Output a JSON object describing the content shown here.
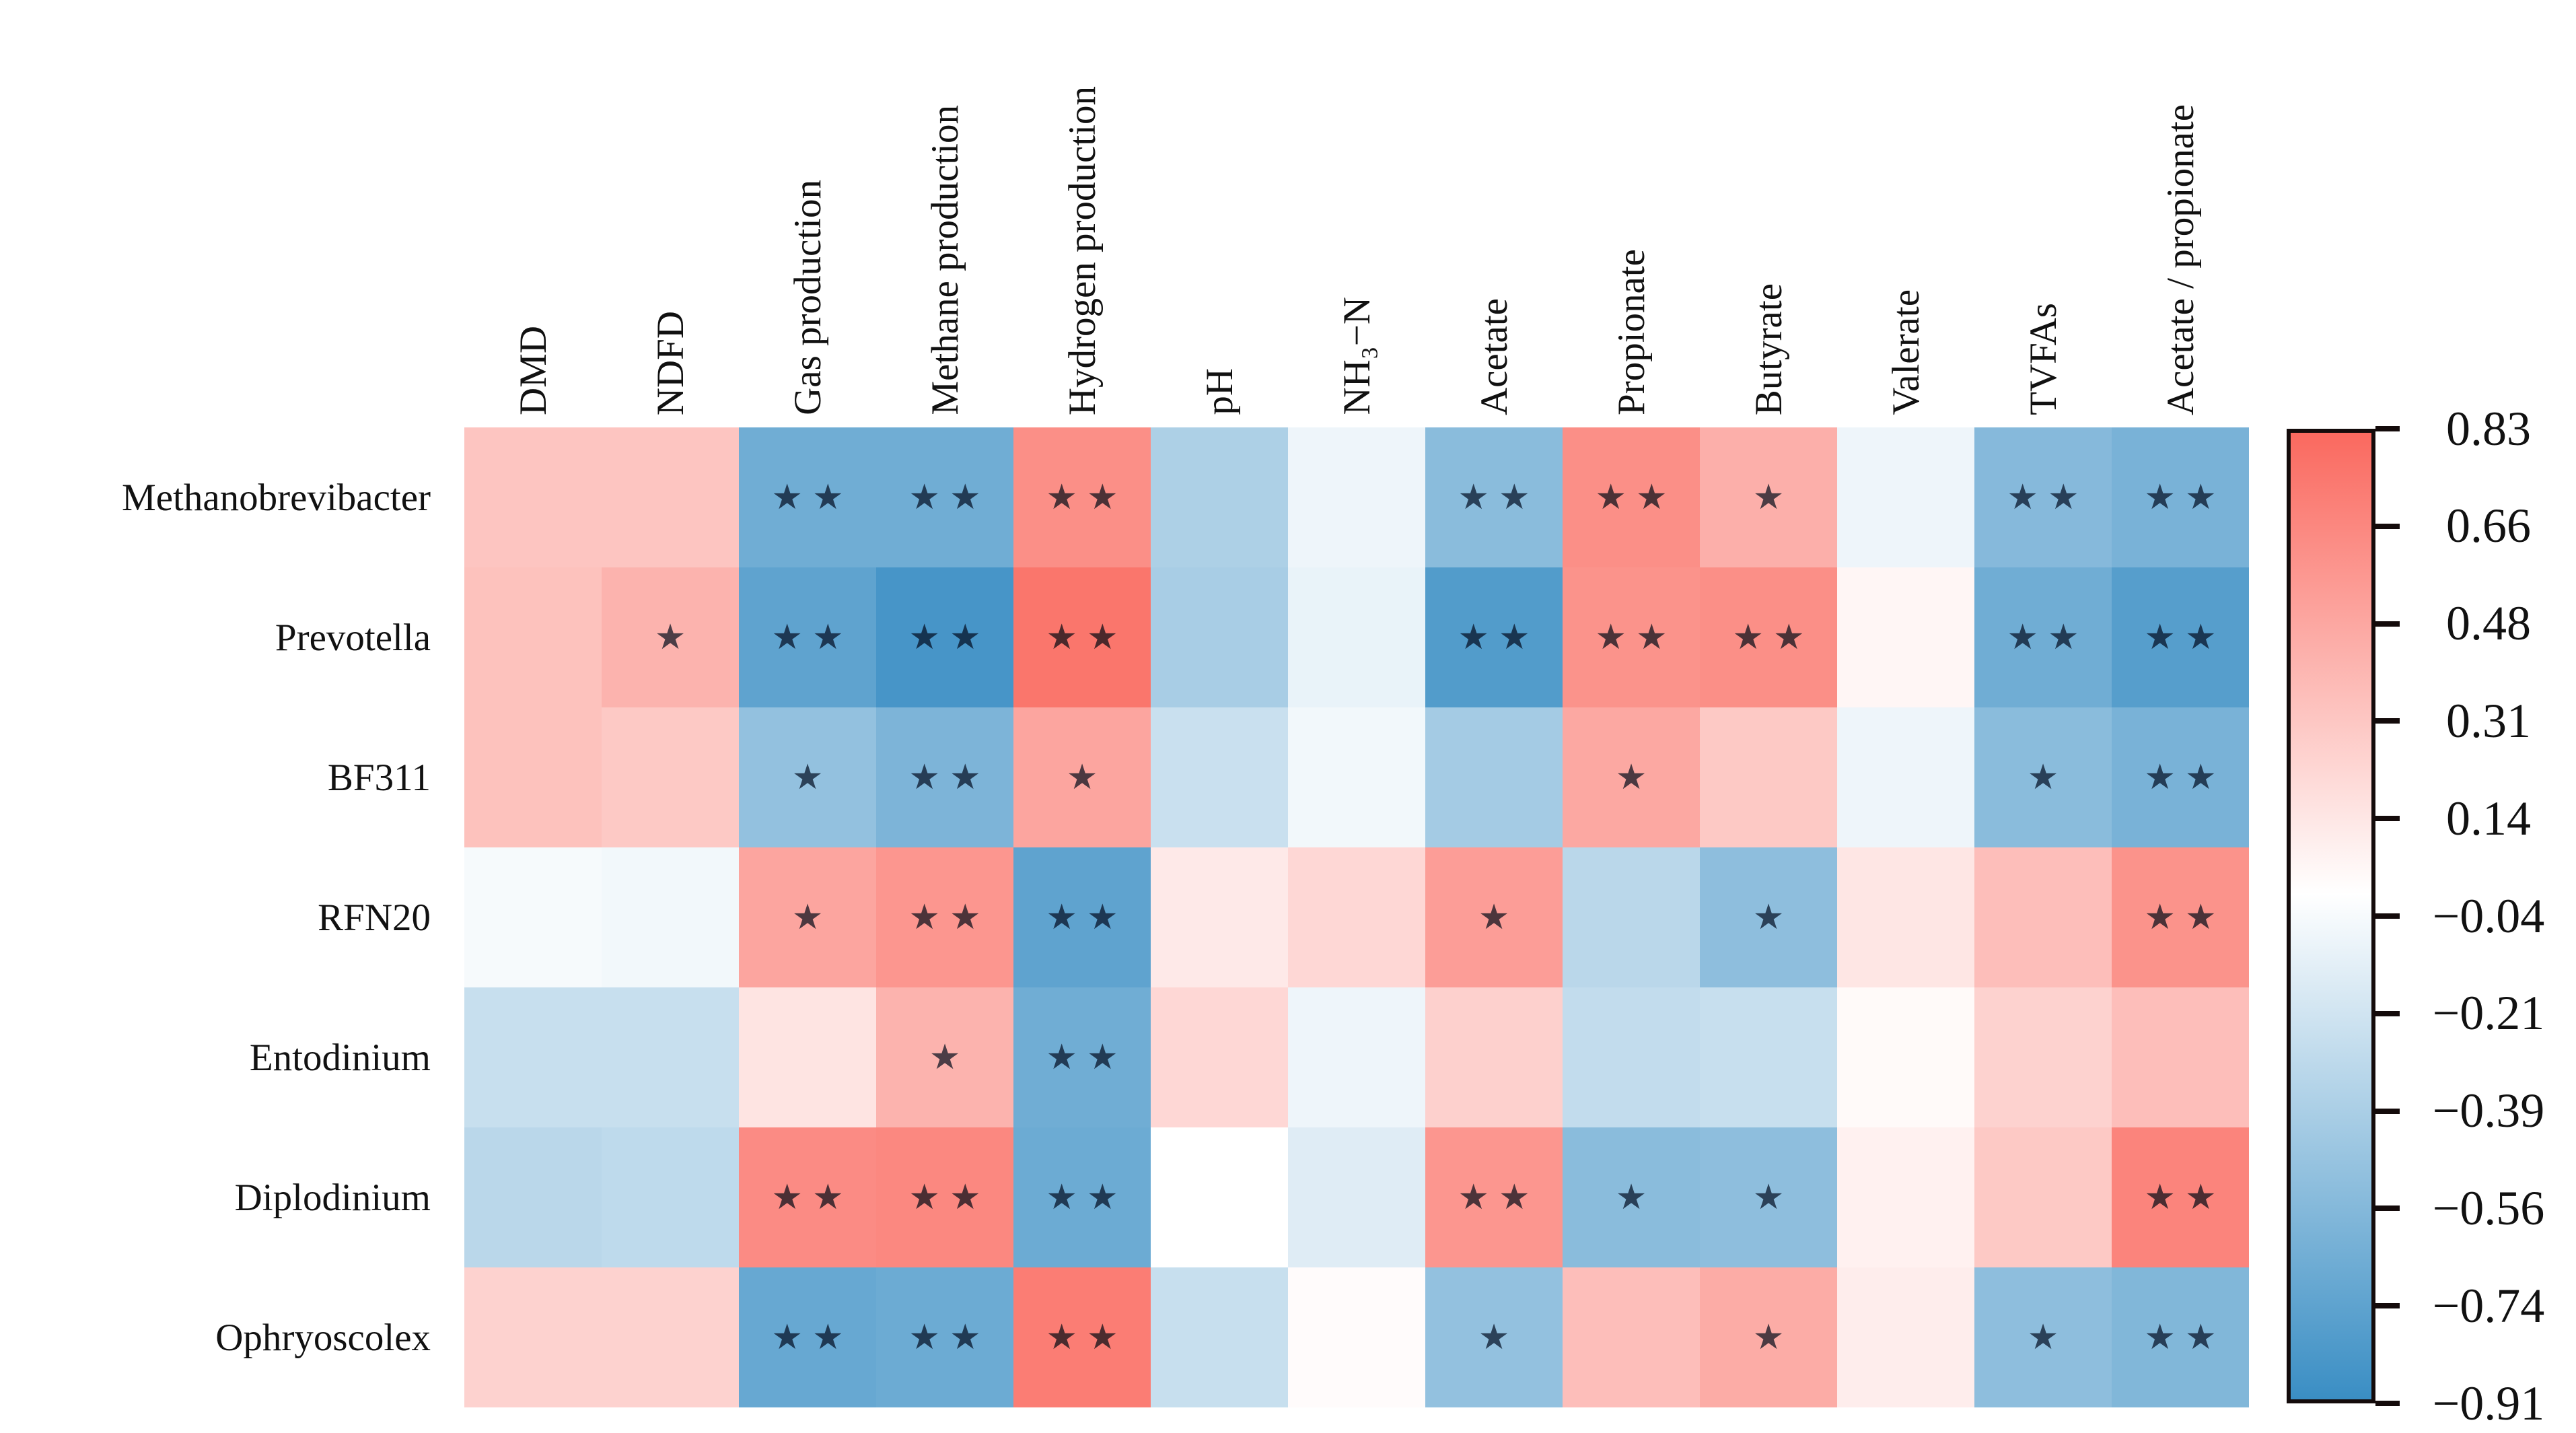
{
  "figure": {
    "kind": "correlation-heatmap-figure",
    "background": "#ffffff",
    "text_color": "#111111"
  },
  "chart_data": {
    "type": "heatmap",
    "title": "",
    "rows": [
      "Methanobrevibacter",
      "Prevotella",
      "BF311",
      "RFN20",
      "Entodinium",
      "Diplodinium",
      "Ophryoscolex"
    ],
    "columns": [
      "DMD",
      "NDFD",
      "Gas production",
      "Methane production",
      "Hydrogen production",
      "pH",
      "NH₃−N",
      "Acetate",
      "Propionate",
      "Butyrate",
      "Valerate",
      "TVFAs",
      "Acetate / propionate"
    ],
    "values": [
      [
        0.32,
        0.32,
        -0.66,
        -0.66,
        0.62,
        -0.38,
        -0.08,
        -0.54,
        0.62,
        0.44,
        -0.08,
        -0.56,
        -0.62
      ],
      [
        0.34,
        0.42,
        -0.74,
        -0.85,
        0.76,
        -0.4,
        -0.1,
        -0.8,
        0.6,
        0.62,
        0.05,
        -0.66,
        -0.78
      ],
      [
        0.34,
        0.3,
        -0.5,
        -0.6,
        0.5,
        -0.25,
        -0.06,
        -0.42,
        0.48,
        0.3,
        -0.08,
        -0.54,
        -0.62
      ],
      [
        -0.04,
        -0.06,
        0.5,
        0.58,
        -0.74,
        0.12,
        0.22,
        0.54,
        -0.32,
        -0.52,
        0.14,
        0.36,
        0.6
      ],
      [
        -0.26,
        -0.26,
        0.15,
        0.42,
        -0.66,
        0.22,
        -0.08,
        0.26,
        -0.28,
        -0.26,
        0.03,
        0.25,
        0.36
      ],
      [
        -0.32,
        -0.3,
        0.64,
        0.66,
        -0.68,
        0.0,
        -0.15,
        0.58,
        -0.54,
        -0.52,
        0.08,
        0.3,
        0.68
      ],
      [
        0.25,
        0.25,
        -0.7,
        -0.68,
        0.72,
        -0.26,
        0.02,
        -0.5,
        0.36,
        0.46,
        0.1,
        -0.52,
        -0.58
      ]
    ],
    "significance": [
      [
        "",
        "",
        "**",
        "**",
        "**",
        "",
        "",
        "**",
        "**",
        "*",
        "",
        "**",
        "**"
      ],
      [
        "",
        "*",
        "**",
        "**",
        "**",
        "",
        "",
        "**",
        "**",
        "**",
        "",
        "**",
        "**"
      ],
      [
        "",
        "",
        "*",
        "**",
        "*",
        "",
        "",
        "",
        "*",
        "",
        "",
        "*",
        "**"
      ],
      [
        "",
        "",
        "*",
        "**",
        "**",
        "",
        "",
        "*",
        "",
        "*",
        "",
        "",
        "**"
      ],
      [
        "",
        "",
        "",
        "*",
        "**",
        "",
        "",
        "",
        "",
        "",
        "",
        "",
        ""
      ],
      [
        "",
        "",
        "**",
        "**",
        "**",
        "",
        "",
        "**",
        "*",
        "*",
        "",
        "",
        "**"
      ],
      [
        "",
        "",
        "**",
        "**",
        "**",
        "",
        "",
        "*",
        "",
        "*",
        "",
        "*",
        "**"
      ]
    ],
    "significance_symbol": "★",
    "colorbar": {
      "position": "right",
      "max": 0.83,
      "min": -0.91,
      "tick_labels": [
        "0.83",
        "0.66",
        "0.48",
        "0.31",
        "0.14",
        "−0.04",
        "−0.21",
        "−0.39",
        "−0.56",
        "−0.74",
        "−0.91"
      ],
      "tick_values": [
        0.83,
        0.66,
        0.48,
        0.31,
        0.14,
        -0.04,
        -0.21,
        -0.39,
        -0.56,
        -0.74,
        -0.91
      ],
      "color_positive_max": "#FA695F",
      "color_zero": "#FFFFFF",
      "color_negative_min": "#3A8EC4"
    },
    "grid": false,
    "legend_position": "right"
  }
}
